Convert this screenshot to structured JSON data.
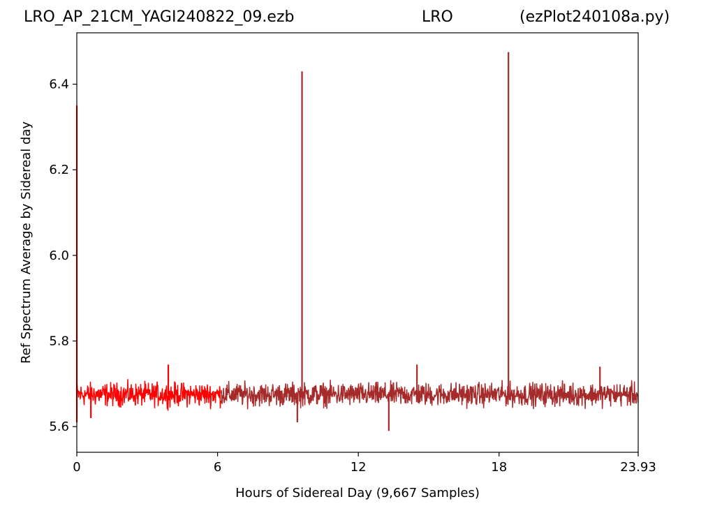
{
  "header": {
    "title_left": "LRO_AP_21CM_YAGI240822_09.ezb",
    "title_center": "LRO",
    "title_right": "(ezPlot240108a.py)"
  },
  "chart_data": {
    "type": "line",
    "xlabel": "Hours of Sidereal Day  (9,667 Samples)",
    "ylabel": "Ref Spectrum Average by Sidereal day",
    "xlim": [
      0,
      23.93
    ],
    "ylim": [
      5.54,
      6.52
    ],
    "x_ticks": [
      0,
      6,
      12,
      18,
      23.93
    ],
    "x_tick_labels": [
      "0",
      "6",
      "12",
      "18",
      "23.93"
    ],
    "y_ticks": [
      5.6,
      5.8,
      6.0,
      6.2,
      6.4
    ],
    "y_tick_labels": [
      "5.6",
      "5.8",
      "6.0",
      "6.2",
      "6.4"
    ],
    "grid": false,
    "series": [
      {
        "color": "#ff0000",
        "x_range": [
          0,
          6.15
        ],
        "baseline": 5.675,
        "noise_amplitude": 0.05,
        "extremes": [
          {
            "x": 0.0,
            "y": 6.35
          },
          {
            "x": 0.0,
            "y": 5.61
          },
          {
            "x": 0.6,
            "y": 5.62
          },
          {
            "x": 3.9,
            "y": 5.745
          }
        ]
      },
      {
        "color": "#a52a2a",
        "x_range": [
          6.15,
          23.93
        ],
        "baseline": 5.675,
        "noise_amplitude": 0.05,
        "extremes": [
          {
            "x": 9.6,
            "y": 6.43
          },
          {
            "x": 18.4,
            "y": 6.475
          },
          {
            "x": 13.3,
            "y": 5.59
          },
          {
            "x": 9.4,
            "y": 5.61
          },
          {
            "x": 14.5,
            "y": 5.745
          },
          {
            "x": 22.3,
            "y": 5.74
          }
        ]
      }
    ]
  }
}
